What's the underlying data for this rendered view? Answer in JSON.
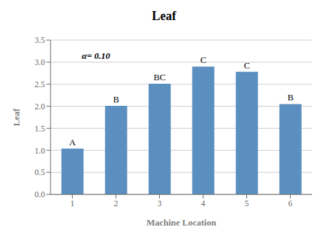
{
  "chart_data": {
    "type": "bar",
    "title": "Leaf",
    "x_label": "Machine Location",
    "y_label": "Leaf",
    "categories": [
      "1",
      "2",
      "3",
      "4",
      "5",
      "6"
    ],
    "values": [
      1.04,
      2.01,
      2.51,
      2.9,
      2.78,
      2.05
    ],
    "bar_labels": [
      "A",
      "B",
      "BC",
      "C",
      "C",
      "B"
    ],
    "annotations": [
      "α= 0.10"
    ],
    "color": "#5b8fbf",
    "ylim": [
      0.0,
      3.5
    ],
    "yticks": [
      {
        "value": 0.0,
        "label": "0.0"
      },
      0.5,
      {
        "value": 1.0,
        "label": "1.0"
      },
      1.5,
      {
        "value": 2.0,
        "label": "2.0"
      },
      2.5,
      {
        "value": 3.0,
        "label": "3.0"
      },
      3.5
    ],
    "grid": true
  }
}
